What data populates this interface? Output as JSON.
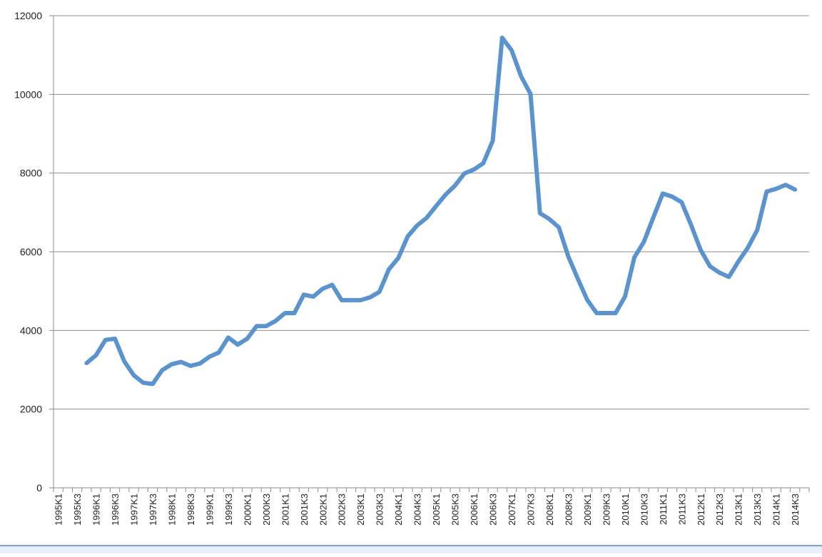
{
  "chart_data": {
    "type": "line",
    "title": "",
    "xlabel": "",
    "ylabel": "",
    "ylim": [
      0,
      12000
    ],
    "yticks": [
      0,
      2000,
      4000,
      6000,
      8000,
      10000,
      12000
    ],
    "grid": true,
    "line_color": "#5b93cf",
    "x": [
      "1995K1",
      "1995K2",
      "1995K3",
      "1995K4",
      "1996K1",
      "1996K2",
      "1996K3",
      "1996K4",
      "1997K1",
      "1997K2",
      "1997K3",
      "1997K4",
      "1998K1",
      "1998K2",
      "1998K3",
      "1998K4",
      "1999K1",
      "1999K2",
      "1999K3",
      "1999K4",
      "2000K1",
      "2000K2",
      "2000K3",
      "2000K4",
      "2001K1",
      "2001K2",
      "2001K3",
      "2001K4",
      "2002K1",
      "2002K2",
      "2002K3",
      "2002K4",
      "2003K1",
      "2003K2",
      "2003K3",
      "2003K4",
      "2004K1",
      "2004K2",
      "2004K3",
      "2004K4",
      "2005K1",
      "2005K2",
      "2005K3",
      "2005K4",
      "2006K1",
      "2006K2",
      "2006K3",
      "2006K4",
      "2007K1",
      "2007K2",
      "2007K3",
      "2007K4",
      "2008K1",
      "2008K2",
      "2008K3",
      "2008K4",
      "2009K1",
      "2009K2",
      "2009K3",
      "2009K4",
      "2010K1",
      "2010K2",
      "2010K3",
      "2010K4",
      "2011K1",
      "2011K2",
      "2011K3",
      "2011K4",
      "2012K1",
      "2012K2",
      "2012K3",
      "2012K4",
      "2013K1",
      "2013K2",
      "2013K3",
      "2013K4",
      "2014K1",
      "2014K2",
      "2014K3",
      "2014K4"
    ],
    "xtick_labels": [
      "1995K1",
      "1995K3",
      "1996K1",
      "1996K3",
      "1997K1",
      "1997K3",
      "1998K1",
      "1998K3",
      "1999K1",
      "1999K3",
      "2000K1",
      "2000K3",
      "2001K1",
      "2001K3",
      "2002K1",
      "2002K3",
      "2003K1",
      "2003K3",
      "2004K1",
      "2004K3",
      "2005K1",
      "2005K3",
      "2006K1",
      "2006K3",
      "2007K1",
      "2007K3",
      "2008K1",
      "2008K3",
      "2009K1",
      "2009K3",
      "2010K1",
      "2010K3",
      "2011K1",
      "2011K3",
      "2012K1",
      "2012K3",
      "2013K1",
      "2013K3",
      "2014K1",
      "2014K3"
    ],
    "series": [
      {
        "values": [
          null,
          null,
          null,
          3170,
          3370,
          3760,
          3790,
          3210,
          2860,
          2670,
          2640,
          2990,
          3140,
          3200,
          3100,
          3160,
          3330,
          3440,
          3820,
          3640,
          3790,
          4110,
          4110,
          4240,
          4440,
          4440,
          4910,
          4860,
          5060,
          5160,
          4770,
          4770,
          4770,
          4840,
          4980,
          5550,
          5840,
          6390,
          6670,
          6860,
          7160,
          7450,
          7680,
          7990,
          8090,
          8250,
          8820,
          11440,
          11120,
          10460,
          10010,
          6980,
          6830,
          6620,
          5880,
          5320,
          4780,
          4440,
          4440,
          4440,
          4860,
          5860,
          6250,
          6870,
          7480,
          7400,
          7260,
          6680,
          6050,
          5630,
          5470,
          5360,
          5750,
          6100,
          6550,
          7530,
          7600,
          7700,
          7580,
          null
        ]
      }
    ]
  }
}
